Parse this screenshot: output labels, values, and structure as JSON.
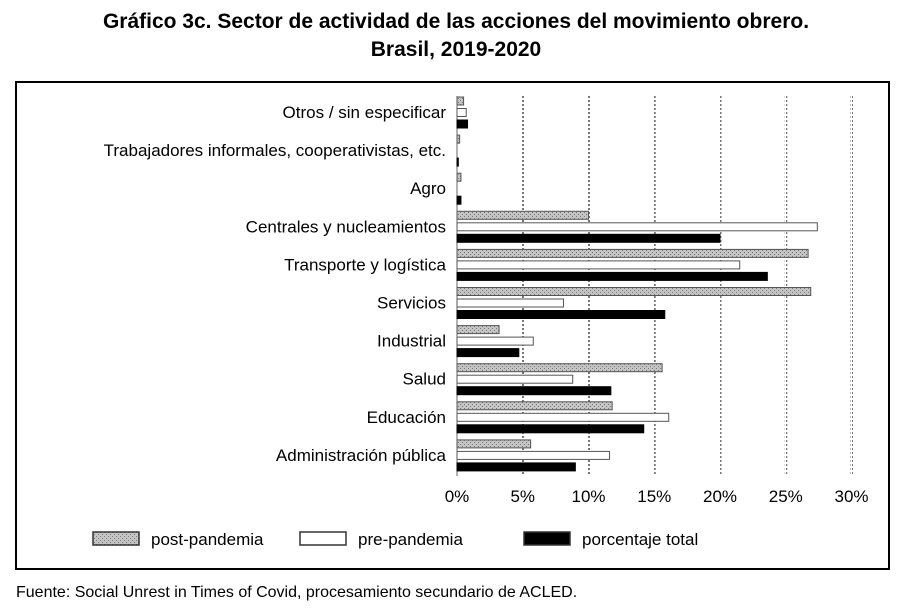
{
  "title_line1": "Gráfico 3c. Sector de actividad de las acciones del movimiento obrero.",
  "title_line2": "Brasil, 2019-2020",
  "source": "Fuente: Social Unrest in Times of Covid, procesamiento secundario de ACLED.",
  "colors": {
    "post": "#b5b5b5",
    "pre": "#ffffff",
    "total": "#000000",
    "grid": "#777777"
  },
  "chart_data": {
    "type": "bar",
    "orientation": "horizontal",
    "categories": [
      "Otros / sin especificar",
      "Trabajadores informales, cooperativistas, etc.",
      "Agro",
      "Centrales y nucleamientos",
      "Transporte y logística",
      "Servicios",
      "Industrial",
      "Salud",
      "Educación",
      "Administración pública"
    ],
    "series": [
      {
        "name": "post-pandemia",
        "values": [
          0.5,
          0.2,
          0.3,
          10.0,
          26.7,
          26.9,
          3.2,
          15.6,
          11.8,
          5.6
        ]
      },
      {
        "name": "pre-pandemia",
        "values": [
          0.7,
          0.0,
          0.0,
          27.4,
          21.5,
          8.1,
          5.8,
          8.8,
          16.1,
          11.6
        ]
      },
      {
        "name": "porcentaje total",
        "values": [
          0.8,
          0.1,
          0.3,
          20.0,
          23.6,
          15.8,
          4.7,
          11.7,
          14.2,
          9.0
        ]
      }
    ],
    "xlim": [
      0,
      30
    ],
    "xticks": [
      "0%",
      "5%",
      "10%",
      "15%",
      "20%",
      "25%",
      "30%"
    ],
    "grid": true,
    "legend_position": "bottom"
  }
}
